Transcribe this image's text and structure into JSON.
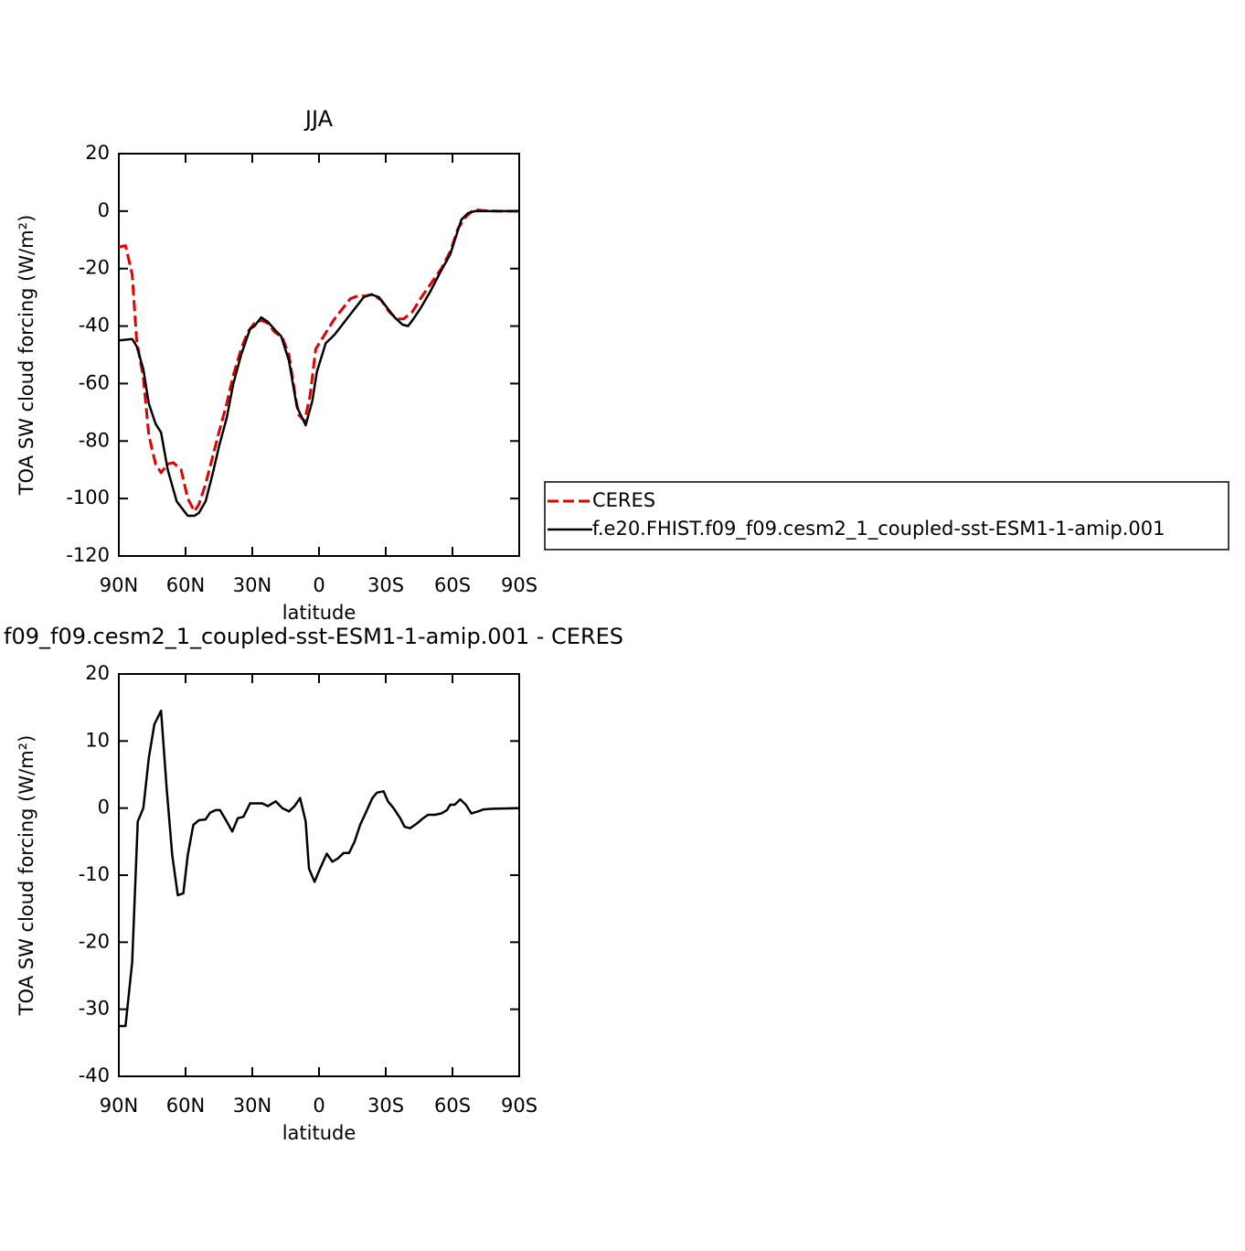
{
  "chart_data": [
    {
      "type": "line",
      "title": "JJA",
      "xlabel": "latitude",
      "ylabel": "TOA SW cloud forcing (W/m²)",
      "xlim": [
        90,
        -90
      ],
      "xticks": [
        {
          "value": 90,
          "label": "90N"
        },
        {
          "value": 60,
          "label": "60N"
        },
        {
          "value": 30,
          "label": "30N"
        },
        0,
        {
          "value": -30,
          "label": "30S"
        },
        {
          "value": -60,
          "label": "60S"
        },
        {
          "value": -90,
          "label": "90S"
        }
      ],
      "ylim": [
        -120,
        20
      ],
      "yticks": [
        -120,
        -100,
        -80,
        -60,
        -40,
        -20,
        0,
        20
      ],
      "legend": "right",
      "series": [
        {
          "name": "CERES",
          "color": "#e00000",
          "dashed": true,
          "x": [
            90,
            87,
            84,
            82,
            79,
            76.5,
            73.5,
            71,
            68,
            65.5,
            62,
            59,
            56,
            54,
            51,
            48,
            45,
            41.5,
            38.5,
            35,
            32,
            29,
            26,
            23,
            20,
            16.5,
            13.5,
            10.5,
            9,
            6.5,
            4,
            1.5,
            -2.5,
            -6.5,
            -10.5,
            -14,
            -17.5,
            -21,
            -24,
            -28,
            -31.5,
            -35,
            -38,
            -42,
            -46,
            -50.5,
            -55,
            -59,
            -62.5,
            -66,
            -69.5,
            -74,
            -80,
            -90
          ],
          "values": [
            -12.5,
            -12,
            -22,
            -45,
            -58,
            -78,
            -88,
            -91,
            -88,
            -87.5,
            -90,
            -100,
            -104.5,
            -102,
            -95,
            -86,
            -77,
            -67,
            -57,
            -48,
            -42,
            -39,
            -38,
            -39,
            -42,
            -44,
            -50,
            -65,
            -71,
            -73,
            -64,
            -48,
            -43,
            -38,
            -34,
            -30.5,
            -29.5,
            -29.5,
            -29,
            -31,
            -35,
            -37.5,
            -37.5,
            -35,
            -30,
            -25,
            -20,
            -14,
            -6,
            -2,
            0.5,
            0.2,
            0,
            0
          ]
        },
        {
          "name": "f.e20.FHIST.f09_f09.cesm2_1_coupled-sst-ESM1-1-amip.001",
          "color": "#000000",
          "dashed": false,
          "x": [
            90,
            84,
            82,
            79,
            76.5,
            73.5,
            71,
            68,
            64,
            59,
            56,
            54,
            51,
            48,
            45,
            41.5,
            38.5,
            35,
            31,
            29,
            26,
            23,
            19,
            17,
            13.5,
            10,
            6,
            3,
            1,
            -3,
            -7,
            -10,
            -13,
            -17,
            -20,
            -23.5,
            -27,
            -30,
            -34,
            -37.5,
            -40,
            -42,
            -45.5,
            -50,
            -54,
            -59,
            -64,
            -67,
            -70,
            -78,
            -90
          ],
          "values": [
            -45,
            -44.5,
            -47,
            -55,
            -67,
            -74,
            -77,
            -90,
            -101,
            -106,
            -106,
            -105,
            -101,
            -92,
            -82,
            -72,
            -60,
            -50,
            -41,
            -40,
            -37,
            -38.5,
            -42,
            -43.5,
            -52,
            -68,
            -74.5,
            -66,
            -56,
            -46,
            -43,
            -40,
            -37,
            -33,
            -30,
            -29,
            -30,
            -33,
            -37,
            -39.5,
            -40,
            -38,
            -34,
            -28,
            -22,
            -15,
            -3,
            -0.7,
            0,
            0,
            0
          ]
        }
      ]
    },
    {
      "type": "line",
      "title": "f09_f09.cesm2_1_coupled-sst-ESM1-1-amip.001 - CERES",
      "xlabel": "latitude",
      "ylabel": "TOA SW cloud forcing (W/m²)",
      "xlim": [
        90,
        -90
      ],
      "xticks": [
        {
          "value": 90,
          "label": "90N"
        },
        {
          "value": 60,
          "label": "60N"
        },
        {
          "value": 30,
          "label": "30N"
        },
        0,
        {
          "value": -30,
          "label": "30S"
        },
        {
          "value": -60,
          "label": "60S"
        },
        {
          "value": -90,
          "label": "90S"
        }
      ],
      "ylim": [
        -40,
        20
      ],
      "yticks": [
        -40,
        -30,
        -20,
        -10,
        0,
        10,
        20
      ],
      "series": [
        {
          "color": "#000000",
          "dashed": false,
          "x": [
            90,
            87,
            84,
            81.5,
            79,
            76.5,
            74,
            71,
            68.5,
            66,
            63.5,
            61,
            59,
            56.5,
            54,
            51,
            49,
            46.5,
            44.5,
            41.5,
            39,
            36.5,
            34,
            31,
            28.5,
            25.5,
            23,
            19.5,
            16.5,
            13.5,
            11,
            8.5,
            6,
            4.5,
            2,
            -0.5,
            -3.5,
            -6,
            -8.5,
            -11,
            -13.5,
            -16,
            -18.5,
            -21,
            -24,
            -26,
            -29,
            -31,
            -33.5,
            -36.5,
            -38.5,
            -41,
            -44,
            -46.5,
            -49,
            -52,
            -55,
            -57.5,
            -59,
            -61,
            -63.5,
            -66,
            -68.5,
            -71.5,
            -74,
            -78,
            -90
          ],
          "values": [
            -32.5,
            -32.5,
            -23,
            -2,
            0,
            7.5,
            12.5,
            14.5,
            3,
            -7,
            -13,
            -12.7,
            -7,
            -2.5,
            -1.8,
            -1.7,
            -0.7,
            -0.3,
            -0.3,
            -2,
            -3.5,
            -1.5,
            -1.3,
            0.7,
            0.7,
            0.7,
            0.3,
            1,
            0,
            -0.5,
            0.3,
            1.5,
            -2,
            -9,
            -11,
            -9,
            -6.8,
            -8,
            -7.5,
            -6.7,
            -6.7,
            -5,
            -2.5,
            -0.7,
            1.5,
            2.3,
            2.5,
            1,
            0,
            -1.5,
            -2.8,
            -3,
            -2.3,
            -1.6,
            -1,
            -1,
            -0.8,
            -0.3,
            0.5,
            0.5,
            1.3,
            0.5,
            -0.8,
            -0.5,
            -0.2,
            -0.1,
            0
          ]
        }
      ]
    }
  ]
}
